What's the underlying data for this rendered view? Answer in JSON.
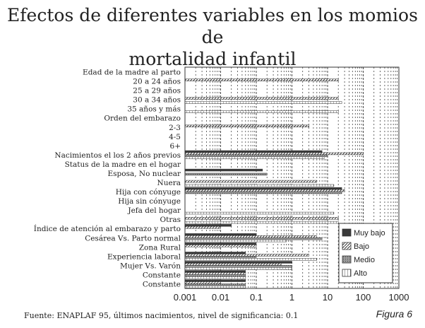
{
  "title_line1": "Efectos de diferentes variables en los momios de",
  "title_line2": "mortalidad infantil",
  "source": "Fuente: ENAPLAF 95, últimos nacimientos, nivel de significancia: 0.1",
  "figure": "Figura 6",
  "chart_data": {
    "type": "bar",
    "orientation": "horizontal",
    "x_scale": "log",
    "xlim": [
      0.001,
      1000
    ],
    "x_ticks": [
      "0.001",
      "0.01",
      "0.1",
      "1",
      "10",
      "100",
      "1000"
    ],
    "grid": "vertical-minor-dashed",
    "legend_position": "inside-right",
    "categories": [
      "Edad de la madre al parto",
      "20 a 24 años",
      "25 a 29 años",
      "30 a 34 años",
      "35 años y más",
      "Orden del embarazo",
      "2-3",
      "4-5",
      "6+",
      "Nacimientos el los 2 años previos",
      "Status de la madre en el hogar",
      "Esposa, No nuclear",
      "Nuera",
      "Hija con cónyuge",
      "Hija sin cónyuge",
      "Jefa del hogar",
      "Otras",
      "Índice de atención al embarazo y parto",
      "Cesárea Vs. Parto normal",
      "Zona Rural",
      "Experiencia laboral",
      "Mujer Vs. Varón",
      "Constante",
      "Constante"
    ],
    "series": [
      {
        "name": "Muy bajo",
        "color": "#3a3a3a",
        "values": [
          null,
          null,
          null,
          null,
          null,
          null,
          null,
          null,
          null,
          7,
          null,
          0.15,
          null,
          25,
          null,
          null,
          null,
          0.02,
          0.1,
          0.1,
          0.05,
          1,
          0.05,
          0.05
        ]
      },
      {
        "name": "Bajo",
        "color": "#ffffff",
        "values": [
          null,
          20,
          null,
          20,
          null,
          null,
          3,
          null,
          null,
          100,
          null,
          null,
          5,
          30,
          null,
          null,
          20,
          0.01,
          5,
          0.1,
          3,
          0.5,
          0.05,
          0.01
        ]
      },
      {
        "name": "Medio",
        "color": "#8a8a8a",
        "values": [
          null,
          null,
          null,
          null,
          null,
          null,
          null,
          null,
          null,
          10,
          null,
          0.2,
          null,
          25,
          null,
          null,
          null,
          null,
          7,
          null,
          0.1,
          1,
          0.05,
          0.05
        ]
      },
      {
        "name": "Alto",
        "color": "#ffffff",
        "values": [
          null,
          null,
          null,
          25,
          20,
          null,
          null,
          null,
          null,
          8,
          null,
          null,
          15,
          null,
          null,
          15,
          20,
          null,
          0.7,
          null,
          5,
          1,
          0.05,
          0.05
        ]
      }
    ]
  }
}
